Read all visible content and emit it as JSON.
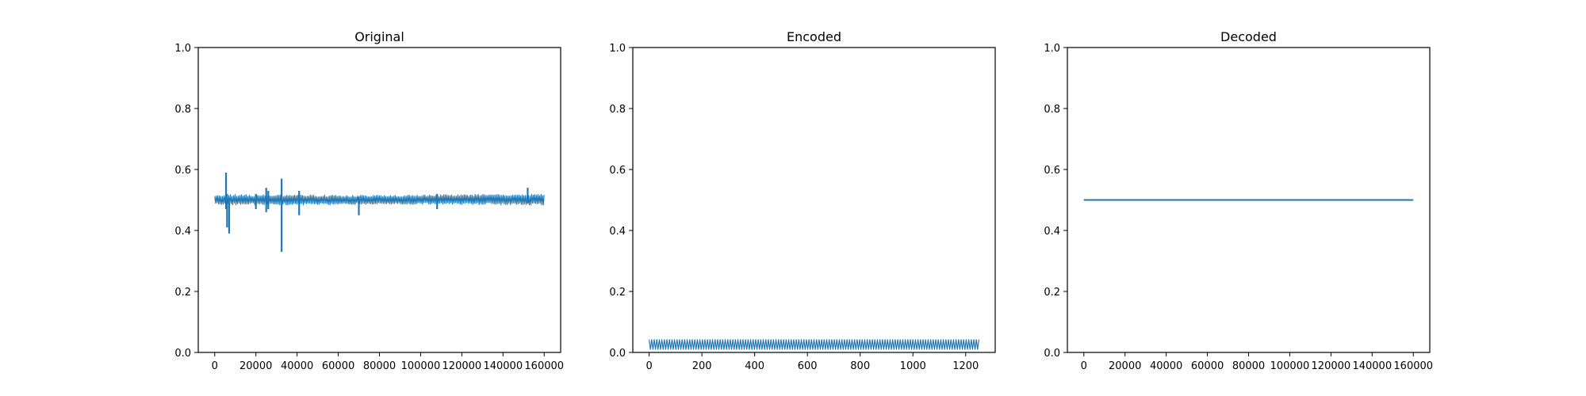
{
  "chart_data": [
    {
      "type": "line",
      "title": "Original",
      "xlabel": "",
      "ylabel": "",
      "xlim": [
        -8000,
        168000
      ],
      "ylim": [
        0.0,
        1.0
      ],
      "x_ticks": [
        0,
        20000,
        40000,
        60000,
        80000,
        100000,
        120000,
        140000,
        160000
      ],
      "x_tick_labels": [
        "0",
        "20000",
        "40000",
        "60000",
        "80000",
        "100000",
        "120000",
        "140000",
        "160000"
      ],
      "y_ticks": [
        0.0,
        0.2,
        0.4,
        0.6,
        0.8,
        1.0
      ],
      "y_tick_labels": [
        "0.0",
        "0.2",
        "0.4",
        "0.6",
        "0.8",
        "1.0"
      ],
      "grid": false,
      "line_color": "#1f77b4",
      "series": [
        {
          "x_range": [
            0,
            160000
          ],
          "band": {
            "x": [
              0,
              40000,
              80000,
              120000,
              160000
            ],
            "low": [
              0.485,
              0.483,
              0.486,
              0.485,
              0.483
            ],
            "high": [
              0.518,
              0.517,
              0.515,
              0.518,
              0.52
            ]
          },
          "spikes": [
            {
              "x": 5500,
              "low": 0.47,
              "high": 0.59
            },
            {
              "x": 6000,
              "low": 0.41,
              "high": 0.52
            },
            {
              "x": 7000,
              "low": 0.39,
              "high": 0.5
            },
            {
              "x": 20000,
              "low": 0.47,
              "high": 0.52
            },
            {
              "x": 25000,
              "low": 0.46,
              "high": 0.54
            },
            {
              "x": 26000,
              "low": 0.47,
              "high": 0.53
            },
            {
              "x": 32500,
              "low": 0.33,
              "high": 0.57
            },
            {
              "x": 41000,
              "low": 0.45,
              "high": 0.53
            },
            {
              "x": 70000,
              "low": 0.45,
              "high": 0.51
            },
            {
              "x": 108000,
              "low": 0.47,
              "high": 0.52
            },
            {
              "x": 152000,
              "low": 0.49,
              "high": 0.54
            }
          ]
        }
      ]
    },
    {
      "type": "line",
      "title": "Encoded",
      "xlabel": "",
      "ylabel": "",
      "xlim": [
        -62,
        1312
      ],
      "ylim": [
        0.0,
        1.0
      ],
      "x_ticks": [
        0,
        200,
        400,
        600,
        800,
        1000,
        1200
      ],
      "x_tick_labels": [
        "0",
        "200",
        "400",
        "600",
        "800",
        "1000",
        "1200"
      ],
      "y_ticks": [
        0.0,
        0.2,
        0.4,
        0.6,
        0.8,
        1.0
      ],
      "y_tick_labels": [
        "0.0",
        "0.2",
        "0.4",
        "0.6",
        "0.8",
        "1.0"
      ],
      "grid": false,
      "line_color": "#1f77b4",
      "series": [
        {
          "x_range": [
            0,
            1250
          ],
          "band": {
            "x": [
              0,
              1250
            ],
            "low": [
              0.01,
              0.01
            ],
            "high": [
              0.042,
              0.042
            ]
          },
          "spikes": []
        }
      ]
    },
    {
      "type": "line",
      "title": "Decoded",
      "xlabel": "",
      "ylabel": "",
      "xlim": [
        -8000,
        168000
      ],
      "ylim": [
        0.0,
        1.0
      ],
      "x_ticks": [
        0,
        20000,
        40000,
        60000,
        80000,
        100000,
        120000,
        140000,
        160000
      ],
      "x_tick_labels": [
        "0",
        "20000",
        "40000",
        "60000",
        "80000",
        "100000",
        "120000",
        "140000",
        "160000"
      ],
      "y_ticks": [
        0.0,
        0.2,
        0.4,
        0.6,
        0.8,
        1.0
      ],
      "y_tick_labels": [
        "0.0",
        "0.2",
        "0.4",
        "0.6",
        "0.8",
        "1.0"
      ],
      "grid": false,
      "line_color": "#1f77b4",
      "series": [
        {
          "x": [
            0,
            160000
          ],
          "y": [
            0.5,
            0.5
          ]
        }
      ]
    }
  ]
}
